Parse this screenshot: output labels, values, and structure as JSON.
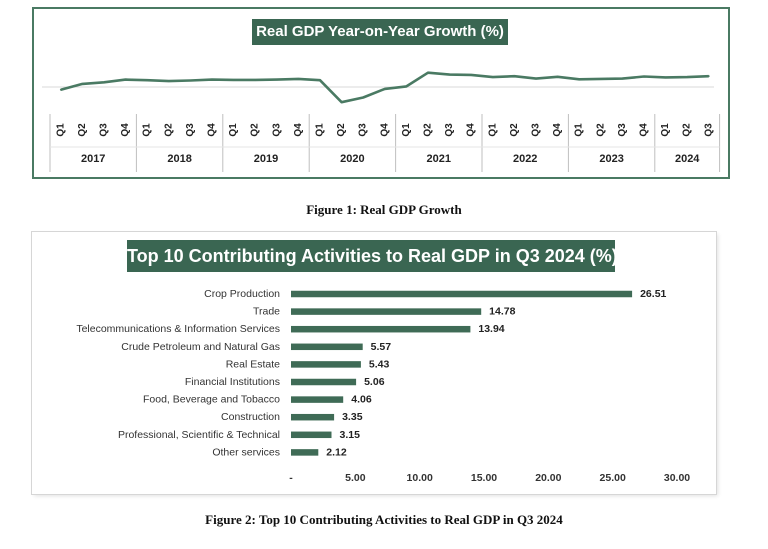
{
  "figure1": {
    "title": "Real GDP Year-on-Year Growth (%)",
    "caption": "Figure 1: Real GDP Growth",
    "chart_data": {
      "type": "line",
      "title": "Real GDP Year-on-Year Growth (%)",
      "quarters": [
        "Q1",
        "Q2",
        "Q3",
        "Q4"
      ],
      "years": [
        "2017",
        "2018",
        "2019",
        "2020",
        "2021",
        "2022",
        "2023",
        "2024"
      ],
      "x": [
        "2017 Q1",
        "2017 Q2",
        "2017 Q3",
        "2017 Q4",
        "2018 Q1",
        "2018 Q2",
        "2018 Q3",
        "2018 Q4",
        "2019 Q1",
        "2019 Q2",
        "2019 Q3",
        "2019 Q4",
        "2020 Q1",
        "2020 Q2",
        "2020 Q3",
        "2020 Q4",
        "2021 Q1",
        "2021 Q2",
        "2021 Q3",
        "2021 Q4",
        "2022 Q1",
        "2022 Q2",
        "2022 Q3",
        "2022 Q4",
        "2023 Q1",
        "2023 Q2",
        "2023 Q3",
        "2023 Q4",
        "2024 Q1",
        "2024 Q2",
        "2024 Q3"
      ],
      "values": [
        -0.9,
        1.0,
        1.5,
        2.4,
        2.2,
        1.9,
        2.1,
        2.4,
        2.3,
        2.3,
        2.4,
        2.6,
        2.2,
        -4.9,
        -3.4,
        -0.6,
        0.2,
        4.6,
        4.0,
        3.9,
        3.2,
        3.5,
        2.7,
        3.3,
        2.5,
        2.6,
        2.7,
        3.4,
        3.1,
        3.2,
        3.5
      ],
      "ylim": [
        -6,
        6
      ],
      "grid": false,
      "color": "#4a7a63"
    }
  },
  "figure2": {
    "title": "Top 10 Contributing Activities to Real GDP in Q3 2024 (%)",
    "caption": "Figure 2: Top 10 Contributing Activities to Real GDP in Q3 2024",
    "chart_data": {
      "type": "bar",
      "orientation": "horizontal",
      "title": "Top 10 Contributing Activities to Real GDP in Q3 2024 (%)",
      "categories": [
        "Crop Production",
        "Trade",
        "Telecommunications & Information Services",
        "Crude Petroleum and Natural Gas",
        "Real Estate",
        "Financial Institutions",
        "Food, Beverage and Tobacco",
        "Construction",
        "Professional, Scientific & Technical",
        "Other services"
      ],
      "values": [
        26.51,
        14.78,
        13.94,
        5.57,
        5.43,
        5.06,
        4.06,
        3.35,
        3.15,
        2.12
      ],
      "value_labels": [
        "26.51",
        "14.78",
        "13.94",
        "5.57",
        "5.43",
        "5.06",
        "4.06",
        "3.35",
        "3.15",
        "2.12"
      ],
      "xlim": [
        0,
        30
      ],
      "xticks": [
        "-",
        "5.00",
        "10.00",
        "15.00",
        "20.00",
        "25.00",
        "30.00"
      ],
      "grid": false,
      "color": "#3f6b56"
    }
  }
}
